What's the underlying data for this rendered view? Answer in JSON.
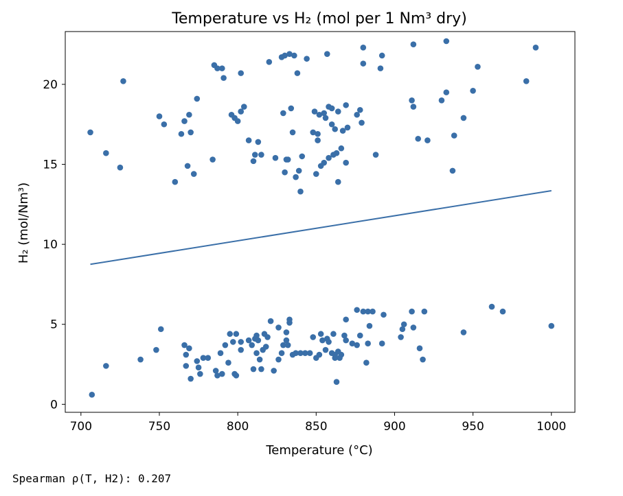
{
  "output_text": "Spearman ρ(T, H2): 0.207",
  "chart_data": {
    "type": "scatter",
    "title": "Temperature vs H₂ (mol per 1 Nm³ dry)",
    "xlabel": "Temperature (°C)",
    "ylabel": "H₂ (mol/Nm³)",
    "xlim": [
      690,
      1015
    ],
    "ylim": [
      -0.5,
      23.3
    ],
    "xticks": [
      700,
      750,
      800,
      850,
      900,
      950,
      1000
    ],
    "yticks": [
      0,
      5,
      10,
      15,
      20
    ],
    "grid": false,
    "marker_color": "#3a6fa8",
    "line_color": "#3a6fa8",
    "trend_line": {
      "x": [
        706,
        1000
      ],
      "y": [
        8.75,
        13.35
      ]
    },
    "points": [
      [
        706,
        17.0
      ],
      [
        716,
        15.7
      ],
      [
        725,
        14.8
      ],
      [
        727,
        20.2
      ],
      [
        750,
        18.0
      ],
      [
        753,
        17.5
      ],
      [
        760,
        13.9
      ],
      [
        764,
        16.9
      ],
      [
        766,
        17.7
      ],
      [
        768,
        14.9
      ],
      [
        769,
        18.1
      ],
      [
        770,
        17.0
      ],
      [
        772,
        14.4
      ],
      [
        774,
        19.1
      ],
      [
        784,
        15.3
      ],
      [
        785,
        21.2
      ],
      [
        787,
        21.0
      ],
      [
        790,
        21.0
      ],
      [
        791,
        20.4
      ],
      [
        796,
        18.1
      ],
      [
        798,
        17.9
      ],
      [
        800,
        17.7
      ],
      [
        802,
        20.7
      ],
      [
        802,
        18.3
      ],
      [
        804,
        18.6
      ],
      [
        807,
        16.5
      ],
      [
        810,
        15.2
      ],
      [
        811,
        15.6
      ],
      [
        813,
        16.4
      ],
      [
        815,
        15.6
      ],
      [
        820,
        21.4
      ],
      [
        824,
        15.4
      ],
      [
        828,
        21.7
      ],
      [
        830,
        21.8
      ],
      [
        829,
        18.2
      ],
      [
        830,
        14.5
      ],
      [
        831,
        15.3
      ],
      [
        832,
        15.3
      ],
      [
        833,
        21.9
      ],
      [
        834,
        18.5
      ],
      [
        835,
        17.0
      ],
      [
        836,
        21.8
      ],
      [
        837,
        14.2
      ],
      [
        838,
        20.7
      ],
      [
        839,
        14.6
      ],
      [
        840,
        13.3
      ],
      [
        841,
        15.5
      ],
      [
        844,
        21.6
      ],
      [
        848,
        17.0
      ],
      [
        849,
        18.3
      ],
      [
        850,
        14.4
      ],
      [
        851,
        16.9
      ],
      [
        851,
        16.5
      ],
      [
        852,
        18.1
      ],
      [
        853,
        14.9
      ],
      [
        855,
        15.1
      ],
      [
        855,
        18.2
      ],
      [
        856,
        17.9
      ],
      [
        857,
        21.9
      ],
      [
        858,
        15.4
      ],
      [
        858,
        18.6
      ],
      [
        860,
        18.5
      ],
      [
        860,
        17.5
      ],
      [
        861,
        15.6
      ],
      [
        862,
        17.2
      ],
      [
        863,
        15.7
      ],
      [
        864,
        18.3
      ],
      [
        864,
        13.9
      ],
      [
        866,
        16.0
      ],
      [
        867,
        17.1
      ],
      [
        869,
        18.7
      ],
      [
        869,
        15.1
      ],
      [
        870,
        17.3
      ],
      [
        876,
        18.1
      ],
      [
        878,
        18.4
      ],
      [
        879,
        17.6
      ],
      [
        880,
        22.3
      ],
      [
        880,
        21.3
      ],
      [
        888,
        15.6
      ],
      [
        891,
        21.0
      ],
      [
        892,
        21.8
      ],
      [
        911,
        19.0
      ],
      [
        912,
        18.6
      ],
      [
        912,
        22.5
      ],
      [
        915,
        16.6
      ],
      [
        921,
        16.5
      ],
      [
        930,
        19.0
      ],
      [
        933,
        19.5
      ],
      [
        933,
        22.7
      ],
      [
        937,
        14.6
      ],
      [
        938,
        16.8
      ],
      [
        944,
        17.9
      ],
      [
        950,
        19.6
      ],
      [
        953,
        21.1
      ],
      [
        984,
        20.2
      ],
      [
        990,
        22.3
      ],
      [
        707,
        0.6
      ],
      [
        716,
        2.4
      ],
      [
        738,
        2.8
      ],
      [
        748,
        3.4
      ],
      [
        751,
        4.7
      ],
      [
        766,
        3.7
      ],
      [
        767,
        3.1
      ],
      [
        767,
        2.4
      ],
      [
        769,
        3.5
      ],
      [
        770,
        1.6
      ],
      [
        774,
        2.7
      ],
      [
        775,
        2.3
      ],
      [
        776,
        1.9
      ],
      [
        778,
        2.9
      ],
      [
        781,
        2.9
      ],
      [
        786,
        2.1
      ],
      [
        787,
        1.8
      ],
      [
        789,
        3.2
      ],
      [
        790,
        1.9
      ],
      [
        792,
        3.7
      ],
      [
        794,
        2.6
      ],
      [
        795,
        4.4
      ],
      [
        797,
        3.9
      ],
      [
        798,
        1.9
      ],
      [
        799,
        4.4
      ],
      [
        799,
        1.8
      ],
      [
        802,
        3.4
      ],
      [
        802,
        3.9
      ],
      [
        807,
        4.0
      ],
      [
        809,
        3.7
      ],
      [
        810,
        2.2
      ],
      [
        811,
        4.1
      ],
      [
        812,
        4.3
      ],
      [
        812,
        3.2
      ],
      [
        813,
        4.0
      ],
      [
        814,
        2.8
      ],
      [
        815,
        2.2
      ],
      [
        816,
        3.4
      ],
      [
        817,
        4.4
      ],
      [
        818,
        3.6
      ],
      [
        819,
        4.2
      ],
      [
        821,
        5.2
      ],
      [
        823,
        2.1
      ],
      [
        826,
        2.8
      ],
      [
        826,
        4.8
      ],
      [
        828,
        3.2
      ],
      [
        829,
        3.7
      ],
      [
        831,
        4.5
      ],
      [
        831,
        4.0
      ],
      [
        832,
        3.7
      ],
      [
        833,
        5.1
      ],
      [
        833,
        5.3
      ],
      [
        835,
        3.1
      ],
      [
        837,
        3.2
      ],
      [
        840,
        3.2
      ],
      [
        843,
        3.2
      ],
      [
        846,
        3.2
      ],
      [
        848,
        4.2
      ],
      [
        850,
        2.9
      ],
      [
        852,
        3.1
      ],
      [
        853,
        4.4
      ],
      [
        854,
        4.0
      ],
      [
        856,
        3.4
      ],
      [
        857,
        4.1
      ],
      [
        858,
        3.9
      ],
      [
        860,
        3.2
      ],
      [
        861,
        4.4
      ],
      [
        862,
        3.1
      ],
      [
        862,
        2.9
      ],
      [
        863,
        1.4
      ],
      [
        864,
        3.3
      ],
      [
        865,
        2.9
      ],
      [
        866,
        3.1
      ],
      [
        868,
        4.3
      ],
      [
        869,
        4.0
      ],
      [
        869,
        5.3
      ],
      [
        873,
        3.8
      ],
      [
        876,
        3.7
      ],
      [
        876,
        5.9
      ],
      [
        878,
        4.3
      ],
      [
        880,
        5.8
      ],
      [
        882,
        2.6
      ],
      [
        883,
        3.8
      ],
      [
        883,
        5.8
      ],
      [
        884,
        4.9
      ],
      [
        886,
        5.8
      ],
      [
        892,
        3.8
      ],
      [
        893,
        5.6
      ],
      [
        904,
        4.2
      ],
      [
        905,
        4.7
      ],
      [
        906,
        5.0
      ],
      [
        911,
        5.8
      ],
      [
        912,
        4.8
      ],
      [
        916,
        3.5
      ],
      [
        918,
        2.8
      ],
      [
        919,
        5.8
      ],
      [
        944,
        4.5
      ],
      [
        962,
        6.1
      ],
      [
        969,
        5.8
      ],
      [
        1000,
        4.9
      ]
    ]
  }
}
